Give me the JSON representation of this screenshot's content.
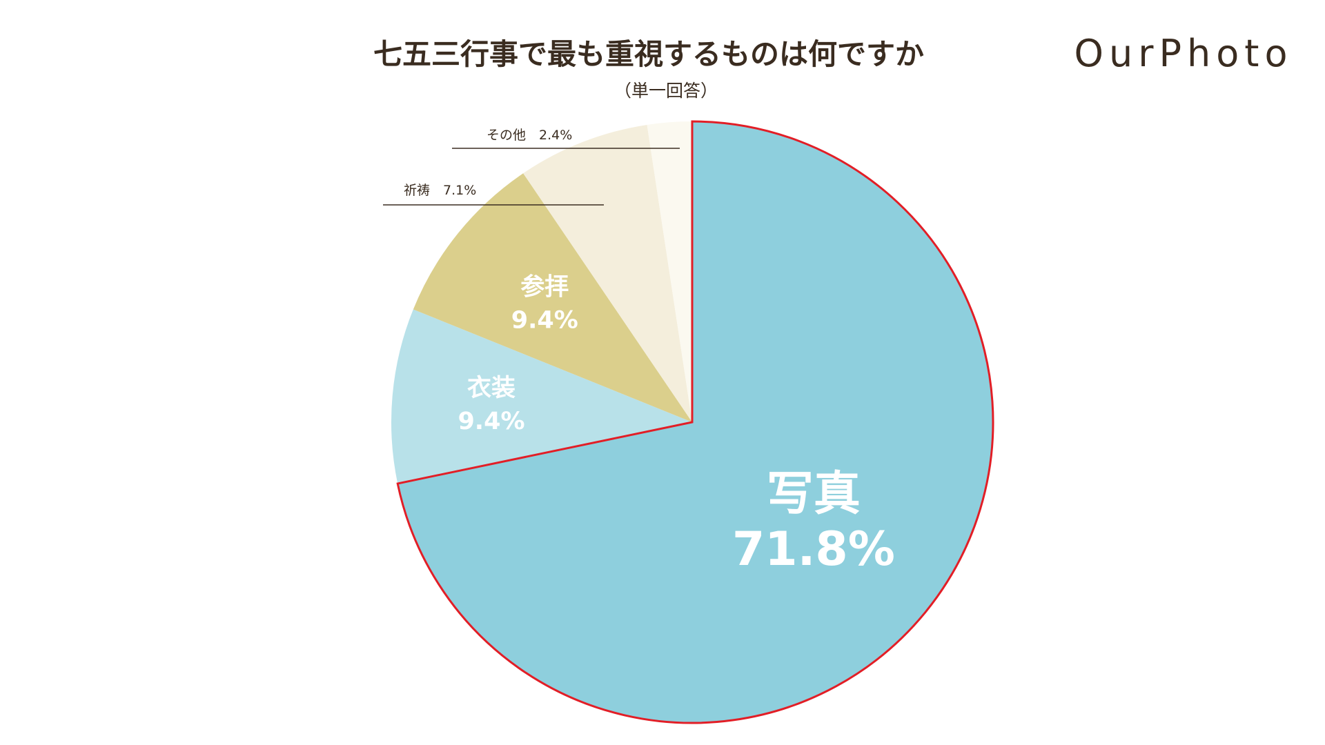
{
  "header": {
    "title": "七五三行事で最も重視するものは何ですか",
    "subtitle": "（単一回答）",
    "logo_text": "OurPhoto"
  },
  "chart_data": {
    "type": "pie",
    "title": "七五三行事で最も重視するものは何ですか",
    "subtitle": "（単一回答）",
    "unit": "%",
    "start": "12 o'clock",
    "direction": "clockwise",
    "highlighted": "写真",
    "slices": [
      {
        "label": "写真",
        "value": 71.8,
        "value_text": "71.8%",
        "color": "#8ecfdd",
        "label_placement": "inside"
      },
      {
        "label": "衣装",
        "value": 9.4,
        "value_text": "9.4%",
        "color": "#b8e1e9",
        "label_placement": "inside"
      },
      {
        "label": "参拝",
        "value": 9.4,
        "value_text": "9.4%",
        "color": "#dbcf8c",
        "label_placement": "inside"
      },
      {
        "label": "祈祷",
        "value": 7.1,
        "value_text": "7.1%",
        "color": "#f4eedc",
        "label_placement": "outside"
      },
      {
        "label": "その他",
        "value": 2.4,
        "value_text": "2.4%",
        "color": "#fbf9f0",
        "label_placement": "outside"
      }
    ],
    "highlight_color": "#e21e26"
  }
}
